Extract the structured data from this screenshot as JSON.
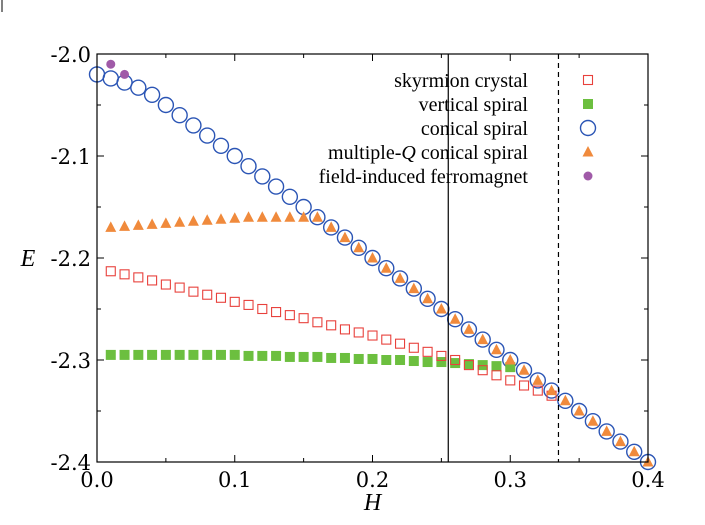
{
  "chart_data": {
    "type": "scatter",
    "xlabel": "H",
    "ylabel": "E",
    "xlim": [
      0.0,
      0.4
    ],
    "ylim": [
      -2.4,
      -2.0
    ],
    "x_ticks": [
      0.0,
      0.1,
      0.2,
      0.3,
      0.4
    ],
    "x_tick_labels": [
      "0.0",
      "0.1",
      "0.2",
      "0.3",
      "0.4"
    ],
    "y_ticks": [
      -2.4,
      -2.3,
      -2.2,
      -2.1,
      -2.0
    ],
    "y_tick_labels": [
      "-2.4",
      "-2.3",
      "-2.2",
      "-2.1",
      "-2.0"
    ],
    "grid": false,
    "legend_position": "top-right",
    "vlines": [
      {
        "x": 0.255,
        "style": "solid"
      },
      {
        "x": 0.335,
        "style": "dashed"
      }
    ],
    "series": [
      {
        "name": "skyrmion crystal",
        "marker": "open-square",
        "color": "#e8413c",
        "x": [
          0.01,
          0.02,
          0.03,
          0.04,
          0.05,
          0.06,
          0.07,
          0.08,
          0.09,
          0.1,
          0.11,
          0.12,
          0.13,
          0.14,
          0.15,
          0.16,
          0.17,
          0.18,
          0.19,
          0.2,
          0.21,
          0.22,
          0.23,
          0.24,
          0.25,
          0.26,
          0.27,
          0.28,
          0.29,
          0.3,
          0.31,
          0.32,
          0.33
        ],
        "y": [
          -2.213,
          -2.216,
          -2.219,
          -2.222,
          -2.226,
          -2.229,
          -2.233,
          -2.236,
          -2.239,
          -2.243,
          -2.246,
          -2.25,
          -2.253,
          -2.256,
          -2.259,
          -2.263,
          -2.266,
          -2.27,
          -2.273,
          -2.276,
          -2.28,
          -2.284,
          -2.288,
          -2.292,
          -2.296,
          -2.3,
          -2.305,
          -2.31,
          -2.315,
          -2.32,
          -2.325,
          -2.33,
          -2.335
        ]
      },
      {
        "name": "vertical spiral",
        "marker": "filled-square",
        "color": "#6cbf3f",
        "x": [
          0.01,
          0.02,
          0.03,
          0.04,
          0.05,
          0.06,
          0.07,
          0.08,
          0.09,
          0.1,
          0.11,
          0.12,
          0.13,
          0.14,
          0.15,
          0.16,
          0.17,
          0.18,
          0.19,
          0.2,
          0.21,
          0.22,
          0.23,
          0.24,
          0.25,
          0.26,
          0.27,
          0.28,
          0.29,
          0.3
        ],
        "y": [
          -2.295,
          -2.295,
          -2.295,
          -2.295,
          -2.295,
          -2.295,
          -2.295,
          -2.295,
          -2.295,
          -2.295,
          -2.296,
          -2.296,
          -2.296,
          -2.297,
          -2.297,
          -2.297,
          -2.298,
          -2.298,
          -2.299,
          -2.299,
          -2.3,
          -2.3,
          -2.301,
          -2.302,
          -2.302,
          -2.303,
          -2.304,
          -2.305,
          -2.306,
          -2.307
        ]
      },
      {
        "name": "conical spiral",
        "marker": "open-circle",
        "color": "#2b55b5",
        "x": [
          0.0,
          0.01,
          0.02,
          0.03,
          0.04,
          0.05,
          0.06,
          0.07,
          0.08,
          0.09,
          0.1,
          0.11,
          0.12,
          0.13,
          0.14,
          0.15,
          0.16,
          0.17,
          0.18,
          0.19,
          0.2,
          0.21,
          0.22,
          0.23,
          0.24,
          0.25,
          0.26,
          0.27,
          0.28,
          0.29,
          0.3,
          0.31,
          0.32,
          0.33,
          0.34,
          0.35,
          0.36,
          0.37,
          0.38,
          0.39,
          0.4
        ],
        "y": [
          -2.02,
          -2.024,
          -2.028,
          -2.033,
          -2.04,
          -2.05,
          -2.06,
          -2.07,
          -2.08,
          -2.09,
          -2.1,
          -2.11,
          -2.12,
          -2.13,
          -2.14,
          -2.15,
          -2.16,
          -2.17,
          -2.18,
          -2.19,
          -2.2,
          -2.21,
          -2.22,
          -2.23,
          -2.24,
          -2.25,
          -2.26,
          -2.27,
          -2.28,
          -2.29,
          -2.3,
          -2.31,
          -2.32,
          -2.33,
          -2.34,
          -2.35,
          -2.36,
          -2.37,
          -2.38,
          -2.39,
          -2.4
        ]
      },
      {
        "name": "multiple-Q conical spiral",
        "name_plain": "multiple-",
        "name_italic": "Q",
        "name_rest": " conical spiral",
        "marker": "filled-triangle",
        "color": "#f08a3c",
        "x": [
          0.01,
          0.02,
          0.03,
          0.04,
          0.05,
          0.06,
          0.07,
          0.08,
          0.09,
          0.1,
          0.11,
          0.12,
          0.13,
          0.14,
          0.15,
          0.16,
          0.17,
          0.18,
          0.19,
          0.2,
          0.21,
          0.22,
          0.23,
          0.24,
          0.25,
          0.26,
          0.27,
          0.28,
          0.29,
          0.3,
          0.31,
          0.32,
          0.33,
          0.34,
          0.35,
          0.36,
          0.37,
          0.38,
          0.39,
          0.4
        ],
        "y": [
          -2.17,
          -2.169,
          -2.168,
          -2.167,
          -2.166,
          -2.165,
          -2.164,
          -2.163,
          -2.162,
          -2.161,
          -2.16,
          -2.16,
          -2.16,
          -2.16,
          -2.16,
          -2.16,
          -2.17,
          -2.18,
          -2.19,
          -2.2,
          -2.21,
          -2.22,
          -2.23,
          -2.24,
          -2.25,
          -2.26,
          -2.27,
          -2.28,
          -2.29,
          -2.3,
          -2.31,
          -2.32,
          -2.33,
          -2.34,
          -2.35,
          -2.36,
          -2.37,
          -2.38,
          -2.39,
          -2.4
        ]
      },
      {
        "name": "field-induced ferromagnet",
        "marker": "filled-circle",
        "color": "#a05aa8",
        "x": [
          0.01,
          0.02
        ],
        "y": [
          -2.01,
          -2.02
        ]
      }
    ]
  }
}
